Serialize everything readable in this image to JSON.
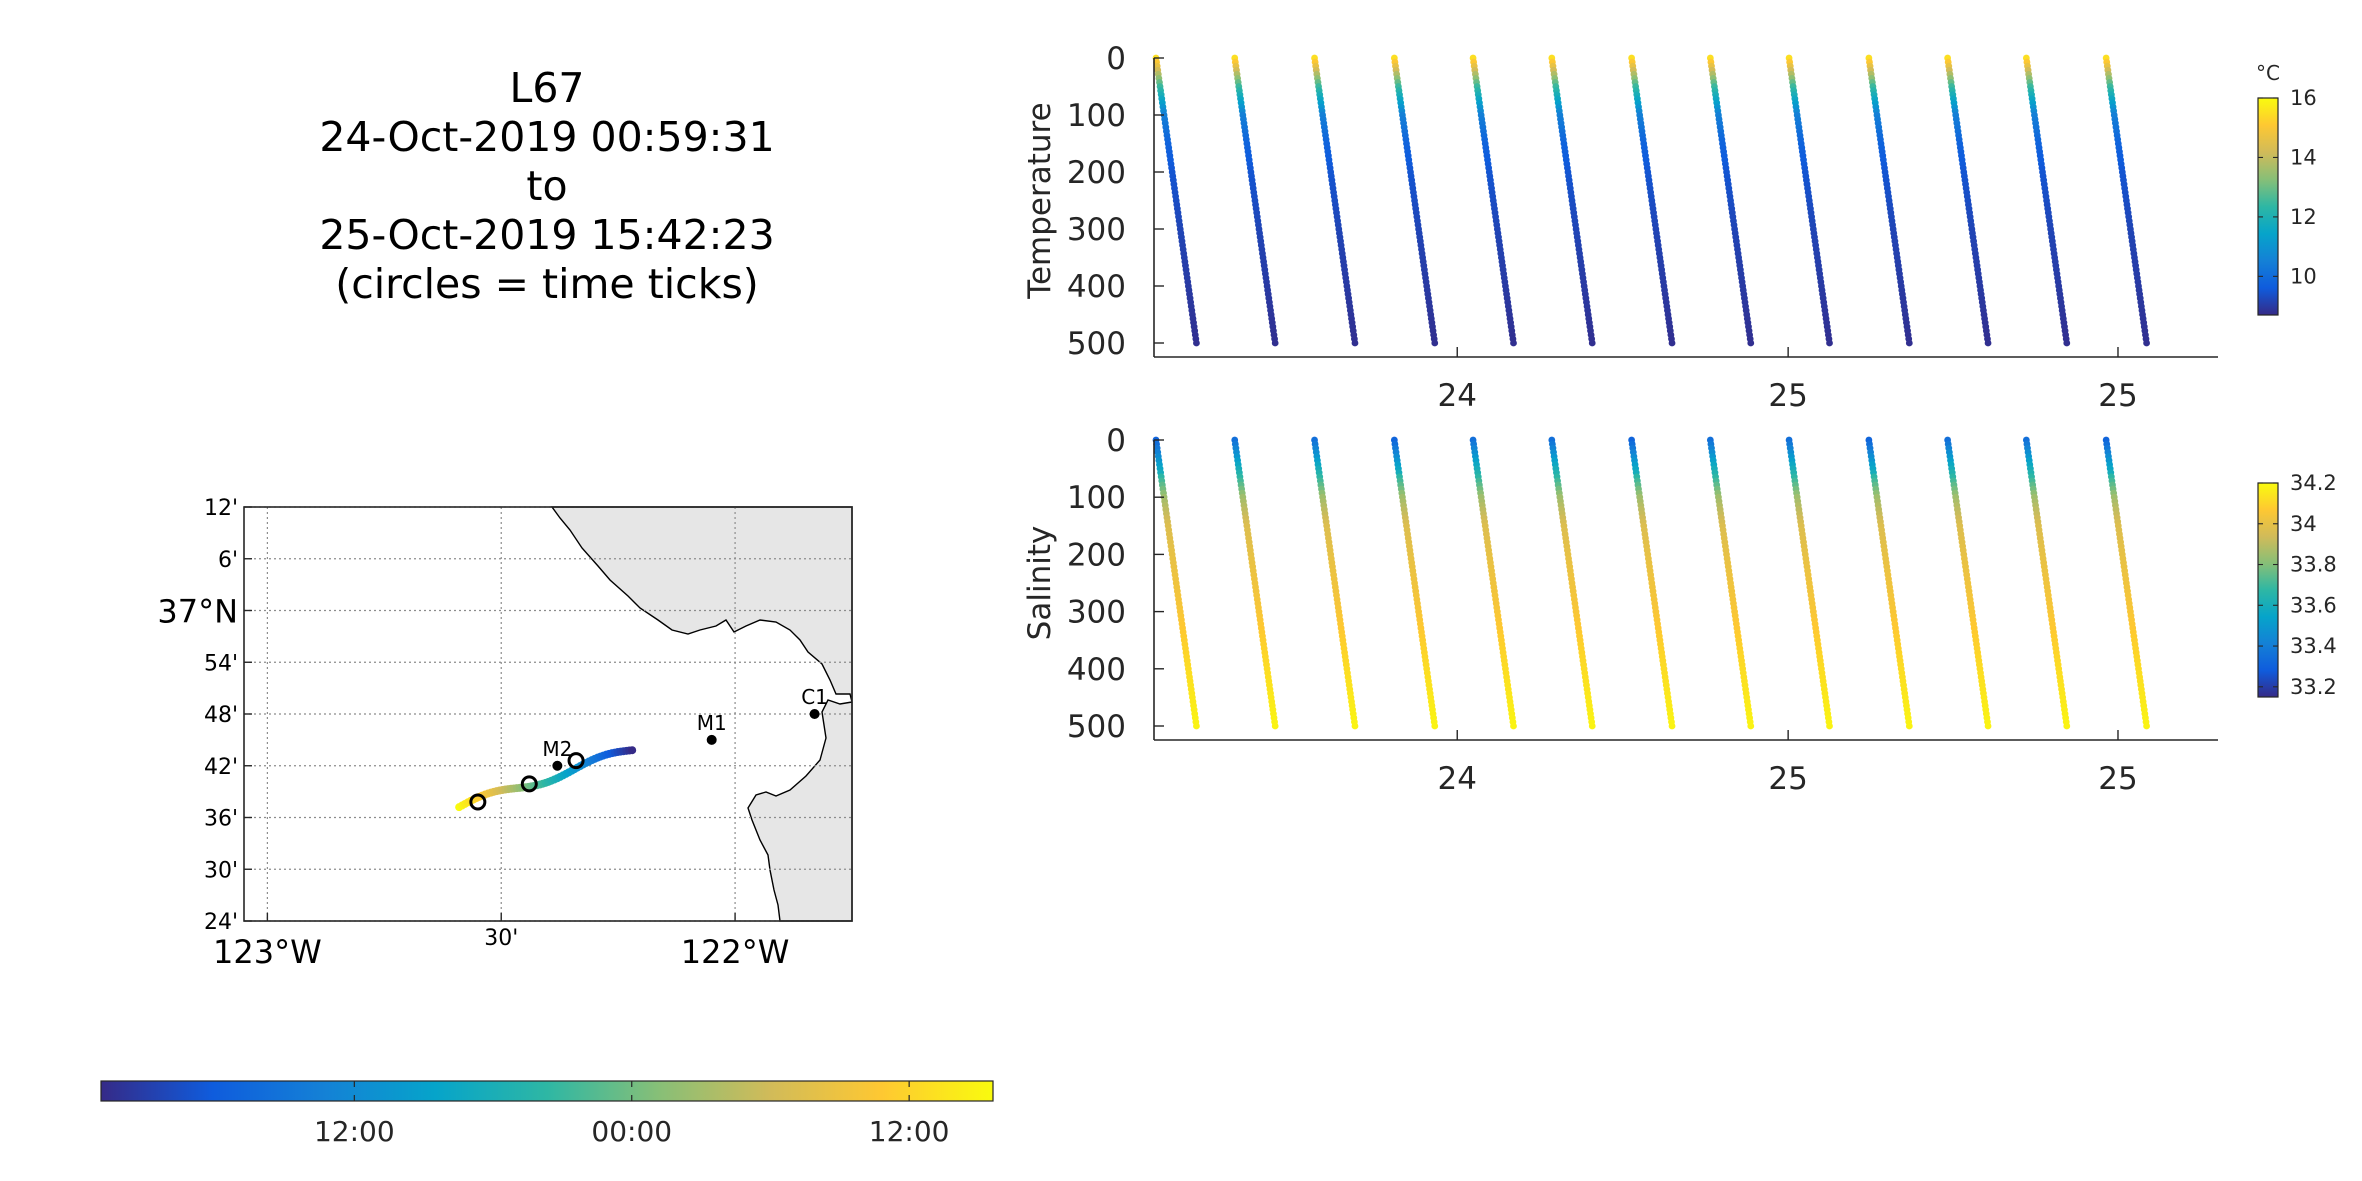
{
  "title_lines": [
    "L67",
    "24-Oct-2019 00:59:31",
    "to",
    "25-Oct-2019 15:42:23",
    "(circles = time ticks)"
  ],
  "colors": {
    "parula": [
      "#352a87",
      "#0f5cdd",
      "#1481d6",
      "#06a4ca",
      "#2eb7a4",
      "#87bf77",
      "#d1bb59",
      "#fec832",
      "#f9fb0e"
    ],
    "land": "#e6e6e6",
    "axis": "#262626",
    "grid": "#8c8c8c"
  },
  "map": {
    "lat_ticks": [
      "12'",
      "6'",
      "37°N",
      "54'",
      "48'",
      "42'",
      "36'",
      "30'",
      "24'"
    ],
    "lon_ticks": [
      "123°W",
      "30'",
      "122°W"
    ],
    "stations": [
      {
        "label": "M1",
        "lon": -122.05,
        "lat": 36.75
      },
      {
        "label": "C1",
        "lon": -121.83,
        "lat": 36.8
      },
      {
        "label": "M2",
        "lon": -122.38,
        "lat": 36.7
      }
    ],
    "track": {
      "start": [
        -122.59,
        36.62
      ],
      "end": [
        -122.22,
        36.73
      ]
    },
    "time_tick_circles": [
      [
        -122.55,
        36.63
      ],
      [
        -122.44,
        36.665
      ],
      [
        -122.34,
        36.71
      ]
    ]
  },
  "time_colorbar": {
    "tick_labels": [
      "12:00",
      "00:00",
      "12:00"
    ],
    "tick_positions": [
      0.284,
      0.595,
      0.906
    ]
  },
  "chart_data": [
    {
      "type": "scatter",
      "ylabel": "Temperature",
      "ylim": [
        500,
        0
      ],
      "y_ticks": [
        0,
        100,
        200,
        300,
        400,
        500
      ],
      "x_tick_labels": [
        "24",
        "25",
        "25"
      ],
      "x_tick_positions": [
        0.285,
        0.596,
        0.906
      ],
      "colorbar": {
        "unit": "°C",
        "range": [
          8.7,
          16
        ],
        "ticks": [
          10,
          12,
          14,
          16
        ]
      },
      "profile_x_starts": [
        0.0,
        0.074,
        0.149,
        0.224,
        0.298,
        0.372,
        0.447,
        0.521,
        0.595,
        0.67,
        0.744,
        0.818,
        0.893
      ],
      "profile_dx": 0.038,
      "depth": [
        0,
        50,
        100,
        150,
        200,
        300,
        400,
        500
      ],
      "values": [
        15.5,
        12.5,
        10.5,
        9.8,
        9.5,
        9.2,
        9.0,
        8.8
      ]
    },
    {
      "type": "scatter",
      "ylabel": "Salinity",
      "ylim": [
        500,
        0
      ],
      "y_ticks": [
        0,
        100,
        200,
        300,
        400,
        500
      ],
      "x_tick_labels": [
        "24",
        "25",
        "25"
      ],
      "x_tick_positions": [
        0.285,
        0.596,
        0.906
      ],
      "colorbar": {
        "unit": "",
        "range": [
          33.15,
          34.2
        ],
        "ticks": [
          33.2,
          33.4,
          33.6,
          33.8,
          34,
          34.2
        ]
      },
      "profile_x_starts": [
        0.0,
        0.074,
        0.149,
        0.224,
        0.298,
        0.372,
        0.447,
        0.521,
        0.595,
        0.67,
        0.744,
        0.818,
        0.893
      ],
      "profile_dx": 0.038,
      "depth": [
        0,
        50,
        100,
        150,
        200,
        300,
        400,
        500
      ],
      "values": [
        33.35,
        33.6,
        33.85,
        33.97,
        34.0,
        34.05,
        34.12,
        34.18
      ]
    }
  ]
}
